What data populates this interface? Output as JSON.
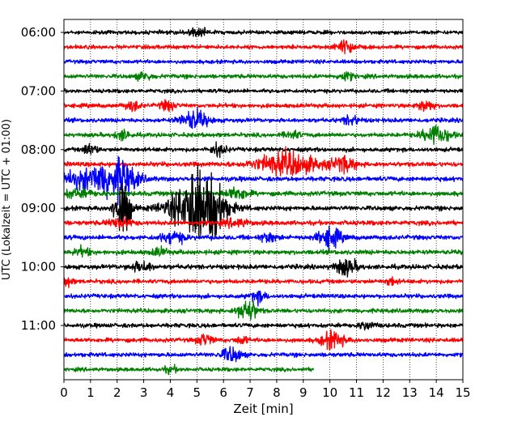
{
  "chart_data": {
    "type": "line",
    "title": "",
    "xlabel": "Zeit  [min]",
    "ylabel": "UTC (Lokalzeit = UTC + 01:00)",
    "xlim": [
      0,
      15
    ],
    "x_ticks": [
      "0",
      "1",
      "2",
      "3",
      "4",
      "5",
      "6",
      "7",
      "8",
      "9",
      "10",
      "11",
      "12",
      "13",
      "14",
      "15"
    ],
    "y_ticks": [
      "06:00",
      "07:00",
      "08:00",
      "09:00",
      "10:00",
      "11:00"
    ],
    "grid": "vertical dotted lines at each minute",
    "trace_colors": [
      "#000000",
      "#ff0000",
      "#0000ff",
      "#008000"
    ],
    "rows": [
      {
        "time": "06:00",
        "color": "#000000",
        "amp": 1.0,
        "end": 15,
        "events": [
          [
            5.0,
            2.0,
            0.3
          ]
        ]
      },
      {
        "time": "06:15",
        "color": "#ff0000",
        "amp": 1.0,
        "end": 15,
        "events": [
          [
            10.6,
            3.5,
            0.25
          ]
        ]
      },
      {
        "time": "06:30",
        "color": "#0000ff",
        "amp": 1.0,
        "end": 15,
        "events": []
      },
      {
        "time": "06:45",
        "color": "#008000",
        "amp": 1.1,
        "end": 15,
        "events": [
          [
            3.0,
            2.0,
            0.2
          ],
          [
            10.6,
            2.0,
            0.2
          ]
        ]
      },
      {
        "time": "07:00",
        "color": "#000000",
        "amp": 1.0,
        "end": 15,
        "events": []
      },
      {
        "time": "07:15",
        "color": "#ff0000",
        "amp": 1.1,
        "end": 15,
        "events": [
          [
            2.6,
            2.5,
            0.2
          ],
          [
            3.9,
            2.5,
            0.2
          ],
          [
            13.6,
            3.0,
            0.2
          ]
        ]
      },
      {
        "time": "07:30",
        "color": "#0000ff",
        "amp": 1.1,
        "end": 15,
        "events": [
          [
            4.9,
            5.0,
            0.35
          ],
          [
            10.8,
            2.5,
            0.2
          ]
        ]
      },
      {
        "time": "07:45",
        "color": "#008000",
        "amp": 1.1,
        "end": 15,
        "events": [
          [
            2.2,
            2.5,
            0.2
          ],
          [
            8.6,
            2.0,
            0.2
          ],
          [
            14.0,
            5.0,
            0.35
          ]
        ]
      },
      {
        "time": "08:00",
        "color": "#000000",
        "amp": 1.1,
        "end": 15,
        "events": [
          [
            1.0,
            4.0,
            0.15
          ],
          [
            5.8,
            3.0,
            0.2
          ]
        ]
      },
      {
        "time": "08:15",
        "color": "#ff0000",
        "amp": 1.2,
        "end": 15,
        "events": [
          [
            8.4,
            6.0,
            0.8
          ],
          [
            10.5,
            4.0,
            0.3
          ]
        ]
      },
      {
        "time": "08:30",
        "color": "#0000ff",
        "amp": 1.2,
        "end": 15,
        "events": [
          [
            0.8,
            4.0,
            0.8
          ],
          [
            1.7,
            6.0,
            0.5
          ],
          [
            2.3,
            5.0,
            0.4
          ]
        ]
      },
      {
        "time": "08:45",
        "color": "#008000",
        "amp": 1.2,
        "end": 15,
        "events": [
          [
            0.5,
            2.0,
            0.4
          ],
          [
            6.5,
            3.0,
            0.3
          ]
        ]
      },
      {
        "time": "09:00",
        "color": "#000000",
        "amp": 1.2,
        "end": 15,
        "events": [
          [
            2.2,
            16.0,
            0.2
          ],
          [
            5.0,
            14.0,
            0.7
          ],
          [
            4.9,
            8.0,
            0.2
          ],
          [
            5.7,
            10.0,
            0.2
          ]
        ]
      },
      {
        "time": "09:15",
        "color": "#ff0000",
        "amp": 1.2,
        "end": 15,
        "events": [
          [
            2.1,
            2.5,
            0.3
          ],
          [
            6.5,
            2.0,
            0.3
          ]
        ]
      },
      {
        "time": "09:30",
        "color": "#0000ff",
        "amp": 1.2,
        "end": 15,
        "events": [
          [
            4.1,
            3.0,
            0.3
          ],
          [
            7.7,
            2.5,
            0.2
          ],
          [
            10.0,
            5.0,
            0.3
          ]
        ]
      },
      {
        "time": "09:45",
        "color": "#008000",
        "amp": 1.2,
        "end": 15,
        "events": [
          [
            0.7,
            2.0,
            0.2
          ],
          [
            3.6,
            2.0,
            0.2
          ]
        ]
      },
      {
        "time": "10:00",
        "color": "#000000",
        "amp": 1.2,
        "end": 15,
        "events": [
          [
            2.9,
            2.5,
            0.3
          ],
          [
            10.6,
            4.0,
            0.3
          ]
        ]
      },
      {
        "time": "10:15",
        "color": "#ff0000",
        "amp": 1.1,
        "end": 15,
        "events": [
          [
            0.1,
            2.5,
            0.15
          ],
          [
            12.3,
            2.0,
            0.15
          ]
        ]
      },
      {
        "time": "10:30",
        "color": "#0000ff",
        "amp": 1.1,
        "end": 15,
        "events": [
          [
            7.3,
            3.0,
            0.2
          ]
        ]
      },
      {
        "time": "10:45",
        "color": "#008000",
        "amp": 1.1,
        "end": 15,
        "events": [
          [
            6.9,
            6.0,
            0.25
          ]
        ]
      },
      {
        "time": "11:00",
        "color": "#000000",
        "amp": 1.1,
        "end": 15,
        "events": [
          [
            11.4,
            2.0,
            0.2
          ]
        ]
      },
      {
        "time": "11:15",
        "color": "#ff0000",
        "amp": 1.1,
        "end": 15,
        "events": [
          [
            5.3,
            3.0,
            0.2
          ],
          [
            6.7,
            2.0,
            0.15
          ],
          [
            10.1,
            4.5,
            0.3
          ]
        ]
      },
      {
        "time": "11:30",
        "color": "#0000ff",
        "amp": 1.1,
        "end": 15,
        "events": [
          [
            6.3,
            4.0,
            0.25
          ]
        ]
      },
      {
        "time": "11:45",
        "color": "#008000",
        "amp": 1.0,
        "end": 9.4,
        "events": [
          [
            4.0,
            1.5,
            0.2
          ]
        ]
      }
    ]
  }
}
